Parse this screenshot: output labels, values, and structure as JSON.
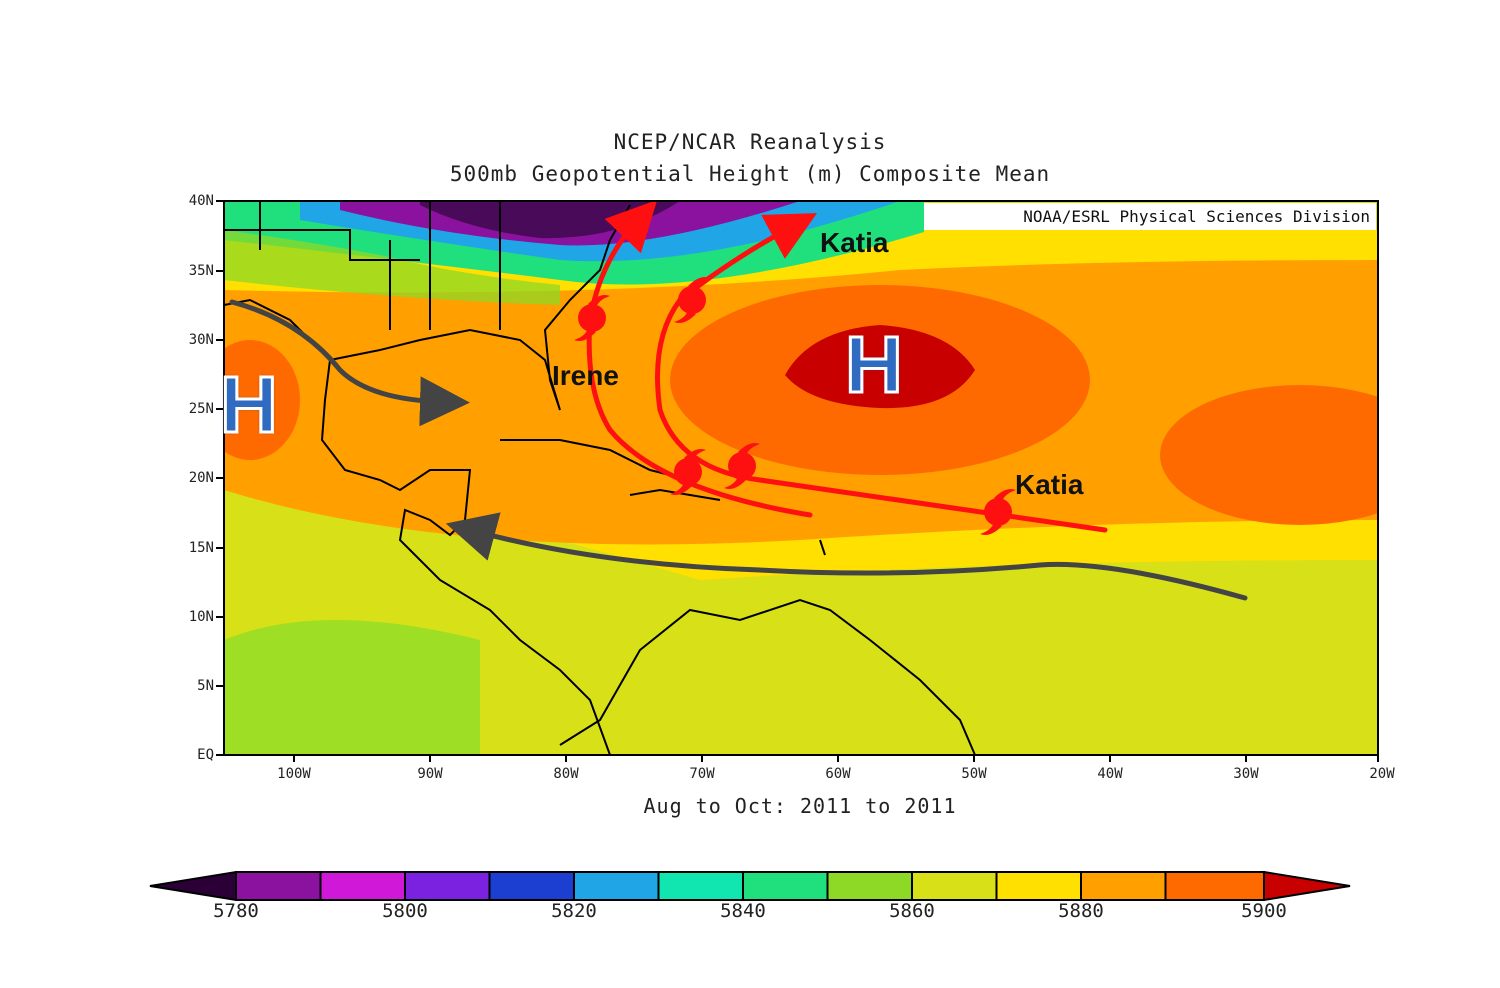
{
  "title_line1": "NCEP/NCAR Reanalysis",
  "title_line2": "500mb Geopotential Height (m) Composite Mean",
  "credit": "NOAA/ESRL Physical Sciences Division",
  "footer": "Aug to Oct: 2011 to 2011",
  "y_ticks": [
    "40N",
    "35N",
    "30N",
    "25N",
    "20N",
    "15N",
    "10N",
    "5N",
    "EQ"
  ],
  "x_ticks": [
    "100W",
    "90W",
    "80W",
    "70W",
    "60W",
    "50W",
    "40W",
    "30W",
    "20W"
  ],
  "annotations": {
    "irene": "Irene",
    "katia_north": "Katia",
    "katia_east": "Katia",
    "high_west": "H",
    "high_atlantic": "H"
  },
  "colorbar": {
    "ticks": [
      "5780",
      "5800",
      "5820",
      "5840",
      "5860",
      "5880",
      "5900"
    ],
    "colors": [
      "#2a0036",
      "#8a129e",
      "#d018d8",
      "#7a22e0",
      "#1c3fd2",
      "#20a6e6",
      "#12e6b0",
      "#20e07e",
      "#8ed826",
      "#d8e018",
      "#ffe000",
      "#ffa000",
      "#ff6a00",
      "#c80000"
    ]
  },
  "legend_colors": {
    "track": "#ff1010",
    "steering_flow": "#444444"
  }
}
